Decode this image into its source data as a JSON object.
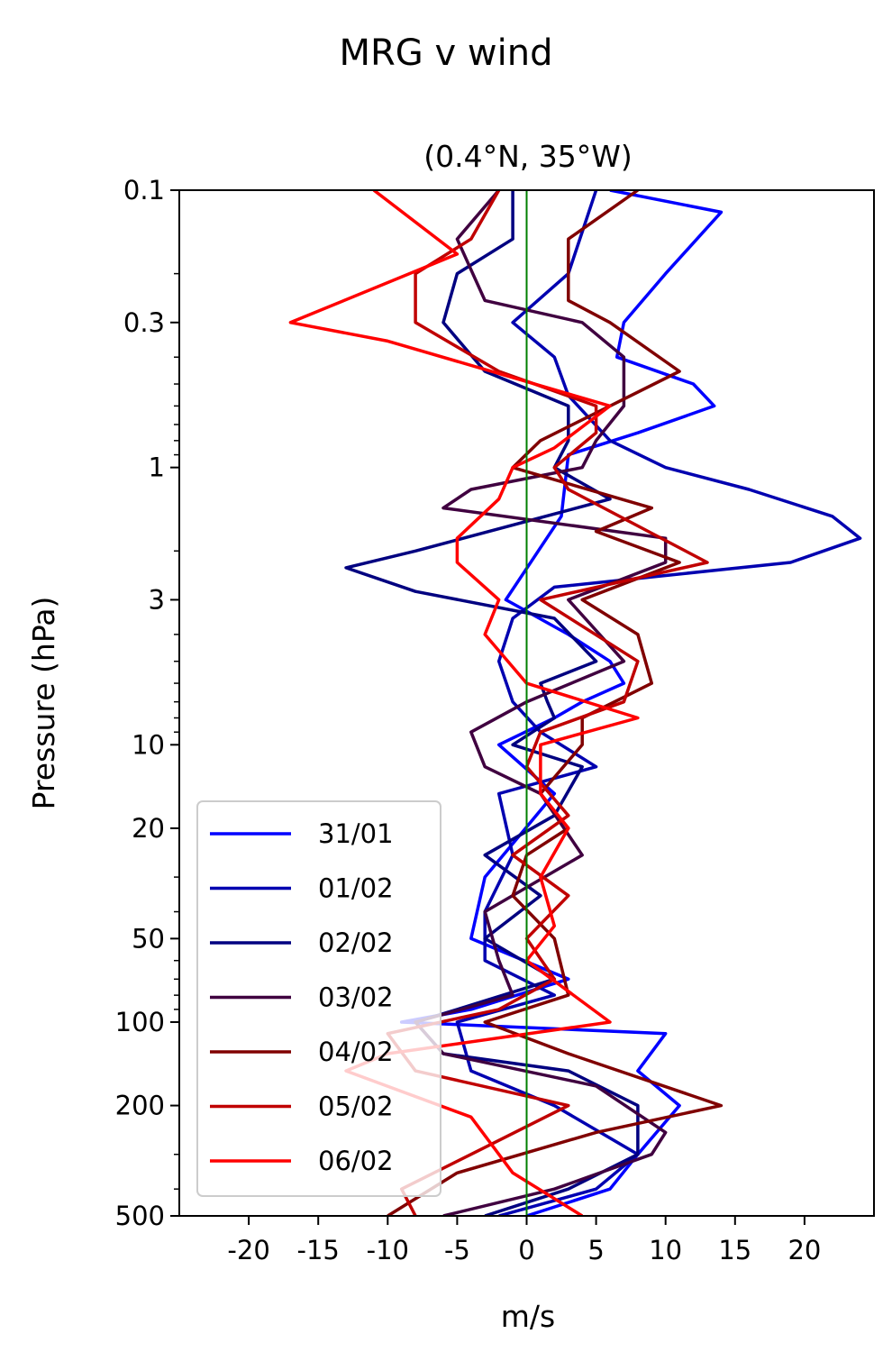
{
  "chart_data": {
    "type": "line",
    "title": "MRG v wind",
    "subtitle": "(0.4°N, 35°W)",
    "xlabel": "m/s",
    "ylabel": "Pressure (hPa)",
    "xlim": [
      -25,
      25
    ],
    "ylim": [
      500,
      0.1
    ],
    "y_scale": "log",
    "x_ticks": [
      -20,
      -15,
      -10,
      -5,
      0,
      5,
      10,
      15,
      20
    ],
    "x_tick_labels": [
      "-20",
      "-15",
      "-10",
      "-5",
      "0",
      "5",
      "10",
      "15",
      "20"
    ],
    "y_ticks": [
      0.1,
      0.3,
      1,
      3,
      10,
      20,
      50,
      100,
      200,
      500
    ],
    "y_tick_labels": [
      "0.1",
      "0.3",
      "1",
      "3",
      "10",
      "20",
      "50",
      "100",
      "200",
      "500"
    ],
    "grid": false,
    "legend_position": "lower-left",
    "reference_line": {
      "x": 0,
      "color": "#007f00"
    },
    "series": [
      {
        "name": "31/01",
        "color": "#0000ff",
        "points": [
          [
            6,
            0.1
          ],
          [
            14,
            0.12
          ],
          [
            10,
            0.2
          ],
          [
            7,
            0.3
          ],
          [
            6.5,
            0.4
          ],
          [
            12,
            0.5
          ],
          [
            13.5,
            0.6
          ],
          [
            8,
            0.75
          ],
          [
            3,
            0.9
          ],
          [
            2.5,
            1.5
          ],
          [
            -1.5,
            3
          ],
          [
            3,
            4
          ],
          [
            6,
            5
          ],
          [
            7,
            6
          ],
          [
            4,
            7
          ],
          [
            2,
            8
          ],
          [
            -2,
            10
          ],
          [
            2,
            15
          ],
          [
            -3,
            30
          ],
          [
            -4,
            50
          ],
          [
            3,
            70
          ],
          [
            -4,
            90
          ],
          [
            -9,
            100
          ],
          [
            10,
            110
          ],
          [
            8,
            150
          ],
          [
            11,
            200
          ],
          [
            8,
            300
          ],
          [
            6,
            400
          ],
          [
            0,
            500
          ]
        ]
      },
      {
        "name": "01/02",
        "color": "#0000b0",
        "points": [
          [
            5,
            0.1
          ],
          [
            3,
            0.2
          ],
          [
            -1,
            0.3
          ],
          [
            2,
            0.4
          ],
          [
            3,
            0.55
          ],
          [
            6,
            0.8
          ],
          [
            10,
            1
          ],
          [
            16,
            1.2
          ],
          [
            22,
            1.5
          ],
          [
            24,
            1.8
          ],
          [
            19,
            2.2
          ],
          [
            2,
            2.7
          ],
          [
            -1,
            3.5
          ],
          [
            -2,
            5
          ],
          [
            -1,
            7
          ],
          [
            1,
            9
          ],
          [
            5,
            12
          ],
          [
            -2,
            15
          ],
          [
            -1,
            25
          ],
          [
            -3,
            40
          ],
          [
            -3,
            60
          ],
          [
            2,
            80
          ],
          [
            -5,
            100
          ],
          [
            -4,
            150
          ],
          [
            2,
            200
          ],
          [
            8,
            300
          ],
          [
            5,
            400
          ],
          [
            -2,
            500
          ]
        ]
      },
      {
        "name": "02/02",
        "color": "#000080",
        "points": [
          [
            -1,
            0.1
          ],
          [
            -1,
            0.15
          ],
          [
            -5,
            0.2
          ],
          [
            -6,
            0.3
          ],
          [
            -3,
            0.45
          ],
          [
            3,
            0.6
          ],
          [
            3,
            0.8
          ],
          [
            2,
            1
          ],
          [
            6,
            1.3
          ],
          [
            -8,
            2
          ],
          [
            -13,
            2.3
          ],
          [
            -8,
            2.8
          ],
          [
            2,
            3.5
          ],
          [
            5,
            5
          ],
          [
            1,
            6
          ],
          [
            1.5,
            7
          ],
          [
            2,
            8
          ],
          [
            -1,
            10
          ],
          [
            4,
            12
          ],
          [
            2,
            18
          ],
          [
            -3,
            25
          ],
          [
            1,
            35
          ],
          [
            -3,
            50
          ],
          [
            2,
            70
          ],
          [
            -5,
            90
          ],
          [
            -8,
            100
          ],
          [
            -6,
            130
          ],
          [
            3,
            150
          ],
          [
            8,
            200
          ],
          [
            8,
            300
          ],
          [
            3,
            400
          ],
          [
            -3,
            500
          ]
        ]
      },
      {
        "name": "03/02",
        "color": "#400040",
        "points": [
          [
            -2,
            0.1
          ],
          [
            -5,
            0.15
          ],
          [
            -3,
            0.25
          ],
          [
            4,
            0.3
          ],
          [
            7,
            0.4
          ],
          [
            7,
            0.6
          ],
          [
            5,
            0.8
          ],
          [
            4,
            1
          ],
          [
            -4,
            1.2
          ],
          [
            -6,
            1.4
          ],
          [
            10,
            1.8
          ],
          [
            10,
            2.2
          ],
          [
            3,
            3
          ],
          [
            7,
            5
          ],
          [
            0,
            7
          ],
          [
            -4,
            9
          ],
          [
            -3,
            12
          ],
          [
            1,
            15
          ],
          [
            4,
            25
          ],
          [
            -3,
            40
          ],
          [
            -2,
            60
          ],
          [
            -1,
            80
          ],
          [
            -8,
            100
          ],
          [
            -6,
            130
          ],
          [
            5,
            170
          ],
          [
            10,
            250
          ],
          [
            9,
            300
          ],
          [
            2,
            400
          ],
          [
            -6,
            500
          ]
        ]
      },
      {
        "name": "04/02",
        "color": "#800000",
        "points": [
          [
            8,
            0.1
          ],
          [
            3,
            0.15
          ],
          [
            3,
            0.25
          ],
          [
            6,
            0.3
          ],
          [
            11,
            0.45
          ],
          [
            6,
            0.6
          ],
          [
            1,
            0.8
          ],
          [
            -1,
            1
          ],
          [
            9,
            1.4
          ],
          [
            5,
            1.7
          ],
          [
            11,
            2.2
          ],
          [
            4,
            3
          ],
          [
            8,
            4
          ],
          [
            9,
            6
          ],
          [
            4,
            8
          ],
          [
            4,
            10
          ],
          [
            1,
            15
          ],
          [
            3,
            20
          ],
          [
            0,
            25
          ],
          [
            -1,
            35
          ],
          [
            2,
            50
          ],
          [
            3,
            80
          ],
          [
            -3,
            100
          ],
          [
            3,
            130
          ],
          [
            14,
            200
          ],
          [
            5,
            250
          ],
          [
            -5,
            350
          ],
          [
            -10,
            500
          ]
        ]
      },
      {
        "name": "05/02",
        "color": "#c00000",
        "points": [
          [
            -2,
            0.1
          ],
          [
            -4,
            0.15
          ],
          [
            -8,
            0.2
          ],
          [
            -8,
            0.3
          ],
          [
            -2,
            0.45
          ],
          [
            5,
            0.6
          ],
          [
            5,
            0.75
          ],
          [
            2,
            1
          ],
          [
            3,
            1.2
          ],
          [
            13,
            2.2
          ],
          [
            1,
            3
          ],
          [
            8,
            5
          ],
          [
            7,
            7
          ],
          [
            1,
            9
          ],
          [
            0,
            12
          ],
          [
            3,
            18
          ],
          [
            -1,
            25
          ],
          [
            3,
            35
          ],
          [
            0,
            50
          ],
          [
            2,
            70
          ],
          [
            -2,
            90
          ],
          [
            -10,
            110
          ],
          [
            -8,
            150
          ],
          [
            3,
            200
          ],
          [
            -4,
            300
          ],
          [
            -9,
            400
          ],
          [
            -8,
            500
          ]
        ]
      },
      {
        "name": "06/02",
        "color": "#ff0000",
        "points": [
          [
            -11,
            0.1
          ],
          [
            -5,
            0.17
          ],
          [
            -17,
            0.3
          ],
          [
            -10,
            0.35
          ],
          [
            6,
            0.6
          ],
          [
            2,
            0.85
          ],
          [
            -1,
            1
          ],
          [
            -2,
            1.3
          ],
          [
            -5,
            1.8
          ],
          [
            -5,
            2.2
          ],
          [
            -2,
            3
          ],
          [
            -3,
            4
          ],
          [
            0,
            6
          ],
          [
            8,
            8
          ],
          [
            1,
            10
          ],
          [
            1,
            15
          ],
          [
            3,
            20
          ],
          [
            1,
            30
          ],
          [
            2,
            45
          ],
          [
            0,
            60
          ],
          [
            6,
            100
          ],
          [
            -10,
            130
          ],
          [
            -13,
            150
          ],
          [
            -4,
            220
          ],
          [
            -1,
            350
          ],
          [
            4,
            500
          ]
        ]
      }
    ]
  }
}
